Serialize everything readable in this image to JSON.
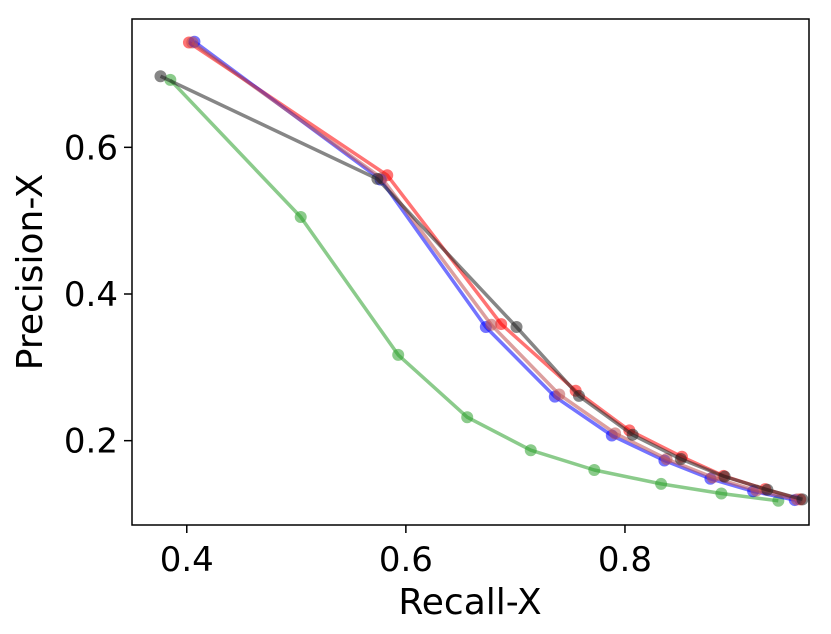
{
  "chart_data": {
    "type": "line",
    "xlabel": "Recall-X",
    "ylabel": "Precision-X",
    "xlim": [
      0.35,
      0.968
    ],
    "ylim": [
      0.085,
      0.775
    ],
    "xticks": [
      0.4,
      0.6,
      0.8
    ],
    "yticks": [
      0.2,
      0.4,
      0.6
    ],
    "xtick_labels": [
      "0.4",
      "0.6",
      "0.8"
    ],
    "ytick_labels": [
      "0.2",
      "0.4",
      "0.6"
    ],
    "grid": false,
    "series": [
      {
        "color": "#2ca02c",
        "x": [
          0.385,
          0.504,
          0.593,
          0.656,
          0.714,
          0.772,
          0.833,
          0.888,
          0.94
        ],
        "y": [
          0.692,
          0.505,
          0.317,
          0.232,
          0.187,
          0.16,
          0.141,
          0.128,
          0.118
        ]
      },
      {
        "color": "#ff0000",
        "x": [
          0.402,
          0.583,
          0.687,
          0.755,
          0.804,
          0.852,
          0.89,
          0.928,
          0.96
        ],
        "y": [
          0.743,
          0.562,
          0.359,
          0.268,
          0.214,
          0.178,
          0.152,
          0.134,
          0.12
        ]
      },
      {
        "color": "#0000ff",
        "x": [
          0.407,
          0.577,
          0.673,
          0.736,
          0.788,
          0.836,
          0.878,
          0.917,
          0.955
        ],
        "y": [
          0.744,
          0.556,
          0.355,
          0.26,
          0.207,
          0.173,
          0.148,
          0.131,
          0.119
        ]
      },
      {
        "color": "#c05050",
        "x": [
          0.405,
          0.578,
          0.678,
          0.74,
          0.791,
          0.838,
          0.88,
          0.92,
          0.957
        ],
        "y": [
          0.743,
          0.558,
          0.358,
          0.263,
          0.21,
          0.175,
          0.15,
          0.132,
          0.12
        ]
      },
      {
        "color": "#222222",
        "x": [
          0.376,
          0.574,
          0.701,
          0.758,
          0.807,
          0.851,
          0.891,
          0.93,
          0.962
        ],
        "y": [
          0.697,
          0.557,
          0.355,
          0.261,
          0.208,
          0.175,
          0.151,
          0.133,
          0.12
        ]
      }
    ]
  }
}
